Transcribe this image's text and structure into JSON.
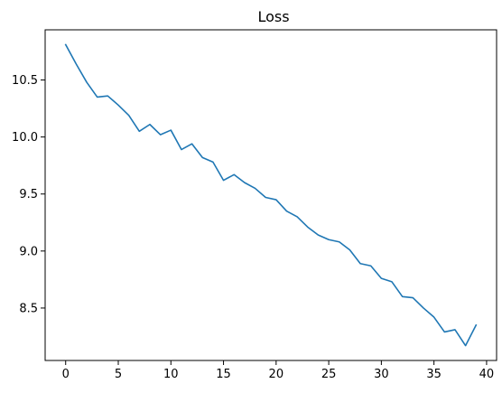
{
  "chart_data": {
    "type": "line",
    "title": "Loss",
    "xlabel": "",
    "ylabel": "",
    "grid": false,
    "xlim": [
      -1.95,
      40.95
    ],
    "ylim": [
      8.04,
      10.94
    ],
    "xticks": [
      0,
      5,
      10,
      15,
      20,
      25,
      30,
      35,
      40
    ],
    "yticks": [
      8.5,
      9.0,
      9.5,
      10.0,
      10.5
    ],
    "ytick_labels": [
      "8.5",
      "9.0",
      "9.5",
      "10.0",
      "10.5"
    ],
    "series": [
      {
        "color": "#1f77b4",
        "x": [
          0,
          1,
          2,
          3,
          4,
          5,
          6,
          7,
          8,
          9,
          10,
          11,
          12,
          13,
          14,
          15,
          16,
          17,
          18,
          19,
          20,
          21,
          22,
          23,
          24,
          25,
          26,
          27,
          28,
          29,
          30,
          31,
          32,
          33,
          34,
          35,
          36,
          37,
          38,
          39
        ],
        "values": [
          10.81,
          10.64,
          10.48,
          10.35,
          10.36,
          10.28,
          10.19,
          10.05,
          10.11,
          10.02,
          10.06,
          9.89,
          9.94,
          9.82,
          9.78,
          9.62,
          9.67,
          9.6,
          9.55,
          9.47,
          9.45,
          9.35,
          9.3,
          9.21,
          9.14,
          9.1,
          9.08,
          9.01,
          8.89,
          8.87,
          8.76,
          8.73,
          8.6,
          8.59,
          8.5,
          8.42,
          8.29,
          8.31,
          8.17,
          8.35
        ]
      }
    ]
  }
}
